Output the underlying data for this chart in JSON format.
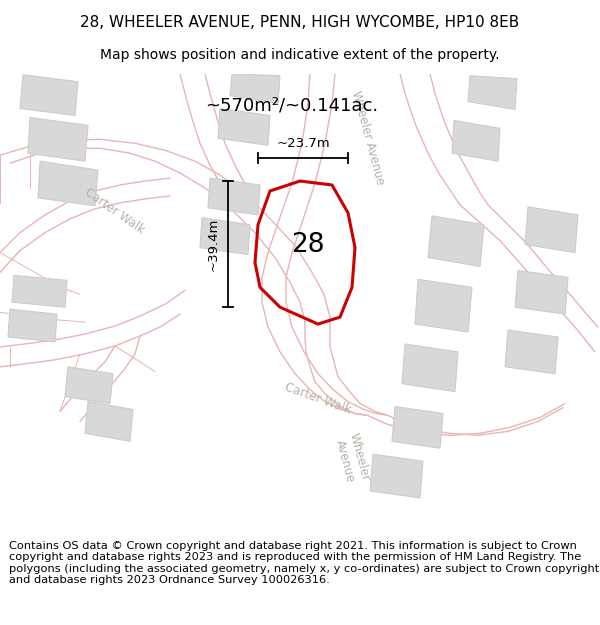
{
  "title_line1": "28, WHEELER AVENUE, PENN, HIGH WYCOMBE, HP10 8EB",
  "title_line2": "Map shows position and indicative extent of the property.",
  "footer_text": "Contains OS data © Crown copyright and database right 2021. This information is subject to Crown copyright and database rights 2023 and is reproduced with the permission of HM Land Registry. The polygons (including the associated geometry, namely x, y co-ordinates) are subject to Crown copyright and database rights 2023 Ordnance Survey 100026316.",
  "area_label": "~570m²/~0.141ac.",
  "number_label": "28",
  "dim_height": "~39.4m",
  "dim_width": "~23.7m",
  "map_bg": "#f0efed",
  "road_line_color": "#e8b4b4",
  "building_color": "#d8d8d8",
  "building_edge": "#cccccc",
  "property_edge": "#cc0000",
  "road_label_color": "#b8b0a8",
  "street_label1": "Carter Walk",
  "street_label2": "Wheeler Avenue",
  "title_fontsize": 11,
  "subtitle_fontsize": 10,
  "footer_fontsize": 8.2
}
